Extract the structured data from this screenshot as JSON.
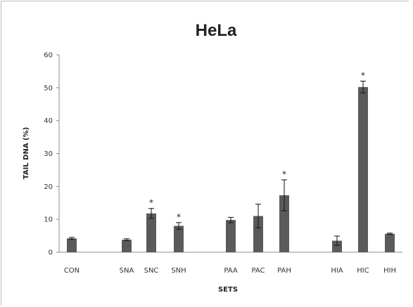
{
  "chart_data": {
    "type": "bar",
    "title": "HeLa",
    "xlabel": "SETS",
    "ylabel": "TAIL DNA (%)",
    "ylim": [
      0,
      60
    ],
    "yticks": [
      0,
      10,
      20,
      30,
      40,
      50,
      60
    ],
    "grid": false,
    "categories": [
      "CON",
      "SNA",
      "SNC",
      "SNH",
      "PAA",
      "PAC",
      "PAH",
      "HIA",
      "HIC",
      "HIH"
    ],
    "values": [
      4.2,
      3.8,
      11.8,
      8.0,
      9.8,
      11.0,
      17.3,
      3.5,
      50.2,
      5.6
    ],
    "errors": [
      0.3,
      0.3,
      1.5,
      1.0,
      0.8,
      3.6,
      4.7,
      1.4,
      1.8,
      0.2
    ],
    "significance": [
      "",
      "",
      "*",
      "*",
      "",
      "",
      "*",
      "",
      "*",
      ""
    ],
    "bar_color": "#5a5a5a"
  }
}
